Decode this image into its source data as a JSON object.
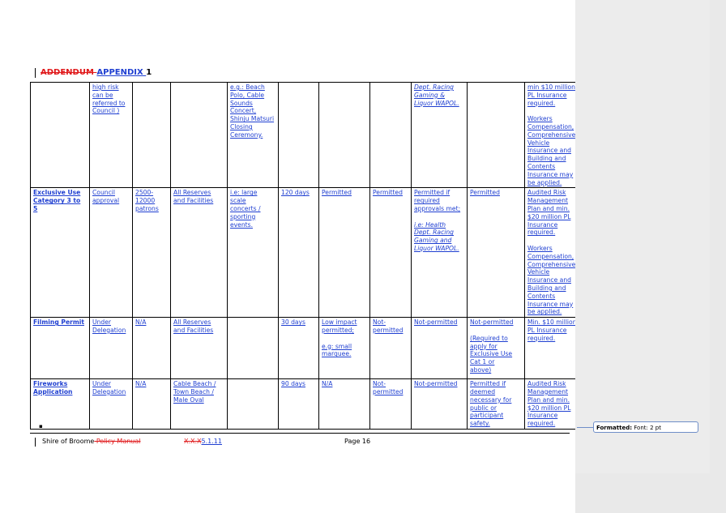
{
  "heading": {
    "deleted": "ADDENDUM ",
    "inserted": "APPENDIX ",
    "number": "1"
  },
  "rows": [
    {
      "name": "",
      "approval": [
        "high risk",
        "can be",
        "referred to",
        "Council )"
      ],
      "capacity": [],
      "area": [],
      "example": [
        "e.g.: Beach",
        "Polo, Cable",
        "Sounds",
        "Concert,",
        "Shinju Matsuri",
        "Closing",
        "Ceremony."
      ],
      "notice": [],
      "alcohol": [],
      "bbq": [],
      "approvals": [
        "Dept. Racing",
        "Gaming &",
        "Liquor WAPOL."
      ],
      "exclusive": [],
      "insurance": [
        "min $10 million",
        "PL Insurance",
        "required.",
        "",
        "Workers",
        "Compensation,",
        "Comprehensive",
        "Vehicle",
        "Insurance and",
        "Building and",
        "Contents",
        "Insurance may",
        "be applied."
      ]
    },
    {
      "name": [
        "Exclusive Use",
        "Category 3 to 5"
      ],
      "approval": [
        "Council",
        "approval"
      ],
      "capacity": [
        "2500-",
        "12000",
        "patrons"
      ],
      "area": [
        "All Reserves",
        "and Facilities"
      ],
      "example": [
        "i.e: large",
        "scale",
        "concerts /",
        "sporting",
        "events."
      ],
      "notice": [
        "120 days"
      ],
      "alcohol": [
        "Permitted"
      ],
      "bbq": [
        "Permitted"
      ],
      "approvals": [
        "Permitted if",
        "required",
        "approvals met;",
        "",
        "i.e: Health",
        "Dept. Racing",
        "Gaming and",
        "Liquor WAPOL."
      ],
      "exclusive": [
        "Permitted"
      ],
      "insurance": [
        "Audited Risk",
        "Management",
        "Plan and min.",
        "$20 million PL",
        "Insurance",
        "required.",
        "",
        "Workers",
        "Compensation,",
        "Comprehensive",
        "Vehicle",
        "Insurance and",
        "Building and",
        "Contents",
        "Insurance may",
        "be applied."
      ]
    },
    {
      "name": [
        "Filming Permit"
      ],
      "approval": [
        "Under",
        "Delegation"
      ],
      "capacity": [
        "N/A"
      ],
      "area": [
        "All Reserves",
        "and Facilities"
      ],
      "example": [],
      "notice": [
        "30 days"
      ],
      "alcohol": [
        "Low impact",
        "permitted;",
        "",
        "e.g: small",
        "marquee."
      ],
      "bbq": [
        "Not-",
        "permitted"
      ],
      "approvals": [
        "Not-permitted"
      ],
      "exclusive": [
        "Not-permitted",
        "",
        "(Required to",
        "apply for",
        "Exclusive Use",
        "Cat 1 or",
        "above)"
      ],
      "insurance": [
        "Min. $10 million",
        "PL Insurance",
        "required."
      ]
    },
    {
      "name": [
        "Fireworks",
        "Application"
      ],
      "approval": [
        "Under",
        "Delegation"
      ],
      "capacity": [
        "N/A"
      ],
      "area": [
        "Cable Beach /",
        "Town Beach /",
        "Male Oval"
      ],
      "example": [],
      "notice": [
        "90 days"
      ],
      "alcohol": [
        "N/A"
      ],
      "bbq": [
        "Not-",
        "permitted"
      ],
      "approvals": [
        "Not-permitted"
      ],
      "exclusive": [
        "Permitted if",
        "deemed",
        "necessary for",
        "public or",
        "participant",
        "safety."
      ],
      "insurance": [
        "Audited Risk",
        "Management",
        "Plan and min.",
        "$20 million PL",
        "Insurance",
        "required."
      ]
    }
  ],
  "footer": {
    "org": "Shire of Broome",
    "deleted_manual": " Policy Manual",
    "deleted_ref": "X.X.X",
    "inserted_ref": "5.1.11",
    "page": "Page 16"
  },
  "comment": {
    "label": "Formatted:",
    "text": " Font: 2 pt"
  }
}
